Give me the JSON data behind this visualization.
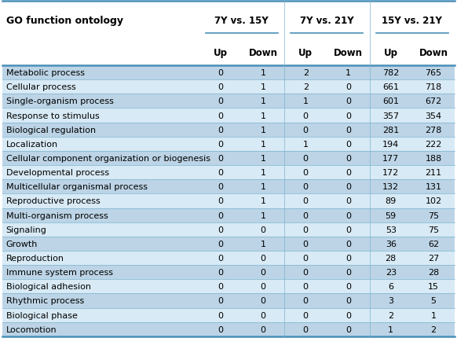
{
  "title": "GO function ontology",
  "col_groups": [
    {
      "label": "7Y vs. 15Y"
    },
    {
      "label": "7Y vs. 21Y"
    },
    {
      "label": "15Y vs. 21Y"
    }
  ],
  "sub_headers": [
    "Up",
    "Down",
    "Up",
    "Down",
    "Up",
    "Down"
  ],
  "rows": [
    [
      "Metabolic process",
      "0",
      "1",
      "2",
      "1",
      "782",
      "765"
    ],
    [
      "Cellular process",
      "0",
      "1",
      "2",
      "0",
      "661",
      "718"
    ],
    [
      "Single-organism process",
      "0",
      "1",
      "1",
      "0",
      "601",
      "672"
    ],
    [
      "Response to stimulus",
      "0",
      "1",
      "0",
      "0",
      "357",
      "354"
    ],
    [
      "Biological regulation",
      "0",
      "1",
      "0",
      "0",
      "281",
      "278"
    ],
    [
      "Localization",
      "0",
      "1",
      "1",
      "0",
      "194",
      "222"
    ],
    [
      "Cellular component organization or biogenesis",
      "0",
      "1",
      "0",
      "0",
      "177",
      "188"
    ],
    [
      "Developmental process",
      "0",
      "1",
      "0",
      "0",
      "172",
      "211"
    ],
    [
      "Multicellular organismal process",
      "0",
      "1",
      "0",
      "0",
      "132",
      "131"
    ],
    [
      "Reproductive process",
      "0",
      "1",
      "0",
      "0",
      "89",
      "102"
    ],
    [
      "Multi-organism process",
      "0",
      "1",
      "0",
      "0",
      "59",
      "75"
    ],
    [
      "Signaling",
      "0",
      "0",
      "0",
      "0",
      "53",
      "75"
    ],
    [
      "Growth",
      "0",
      "1",
      "0",
      "0",
      "36",
      "62"
    ],
    [
      "Reproduction",
      "0",
      "0",
      "0",
      "0",
      "28",
      "27"
    ],
    [
      "Immune system process",
      "0",
      "0",
      "0",
      "0",
      "23",
      "28"
    ],
    [
      "Biological adhesion",
      "0",
      "0",
      "0",
      "0",
      "6",
      "15"
    ],
    [
      "Rhythmic process",
      "0",
      "0",
      "0",
      "0",
      "3",
      "5"
    ],
    [
      "Biological phase",
      "0",
      "0",
      "0",
      "0",
      "2",
      "1"
    ],
    [
      "Locomotion",
      "0",
      "0",
      "0",
      "0",
      "1",
      "2"
    ]
  ],
  "row_bg_dark": "#bcd4e6",
  "row_bg_light": "#d8eaf5",
  "header_bg": "#ffffff",
  "border_color_thick": "#4a90b8",
  "border_color_thin": "#7ab4d0",
  "text_color": "#000000",
  "header_fontsize": 8.5,
  "cell_fontsize": 8.0,
  "figsize": [
    5.82,
    4.31
  ],
  "dpi": 100
}
